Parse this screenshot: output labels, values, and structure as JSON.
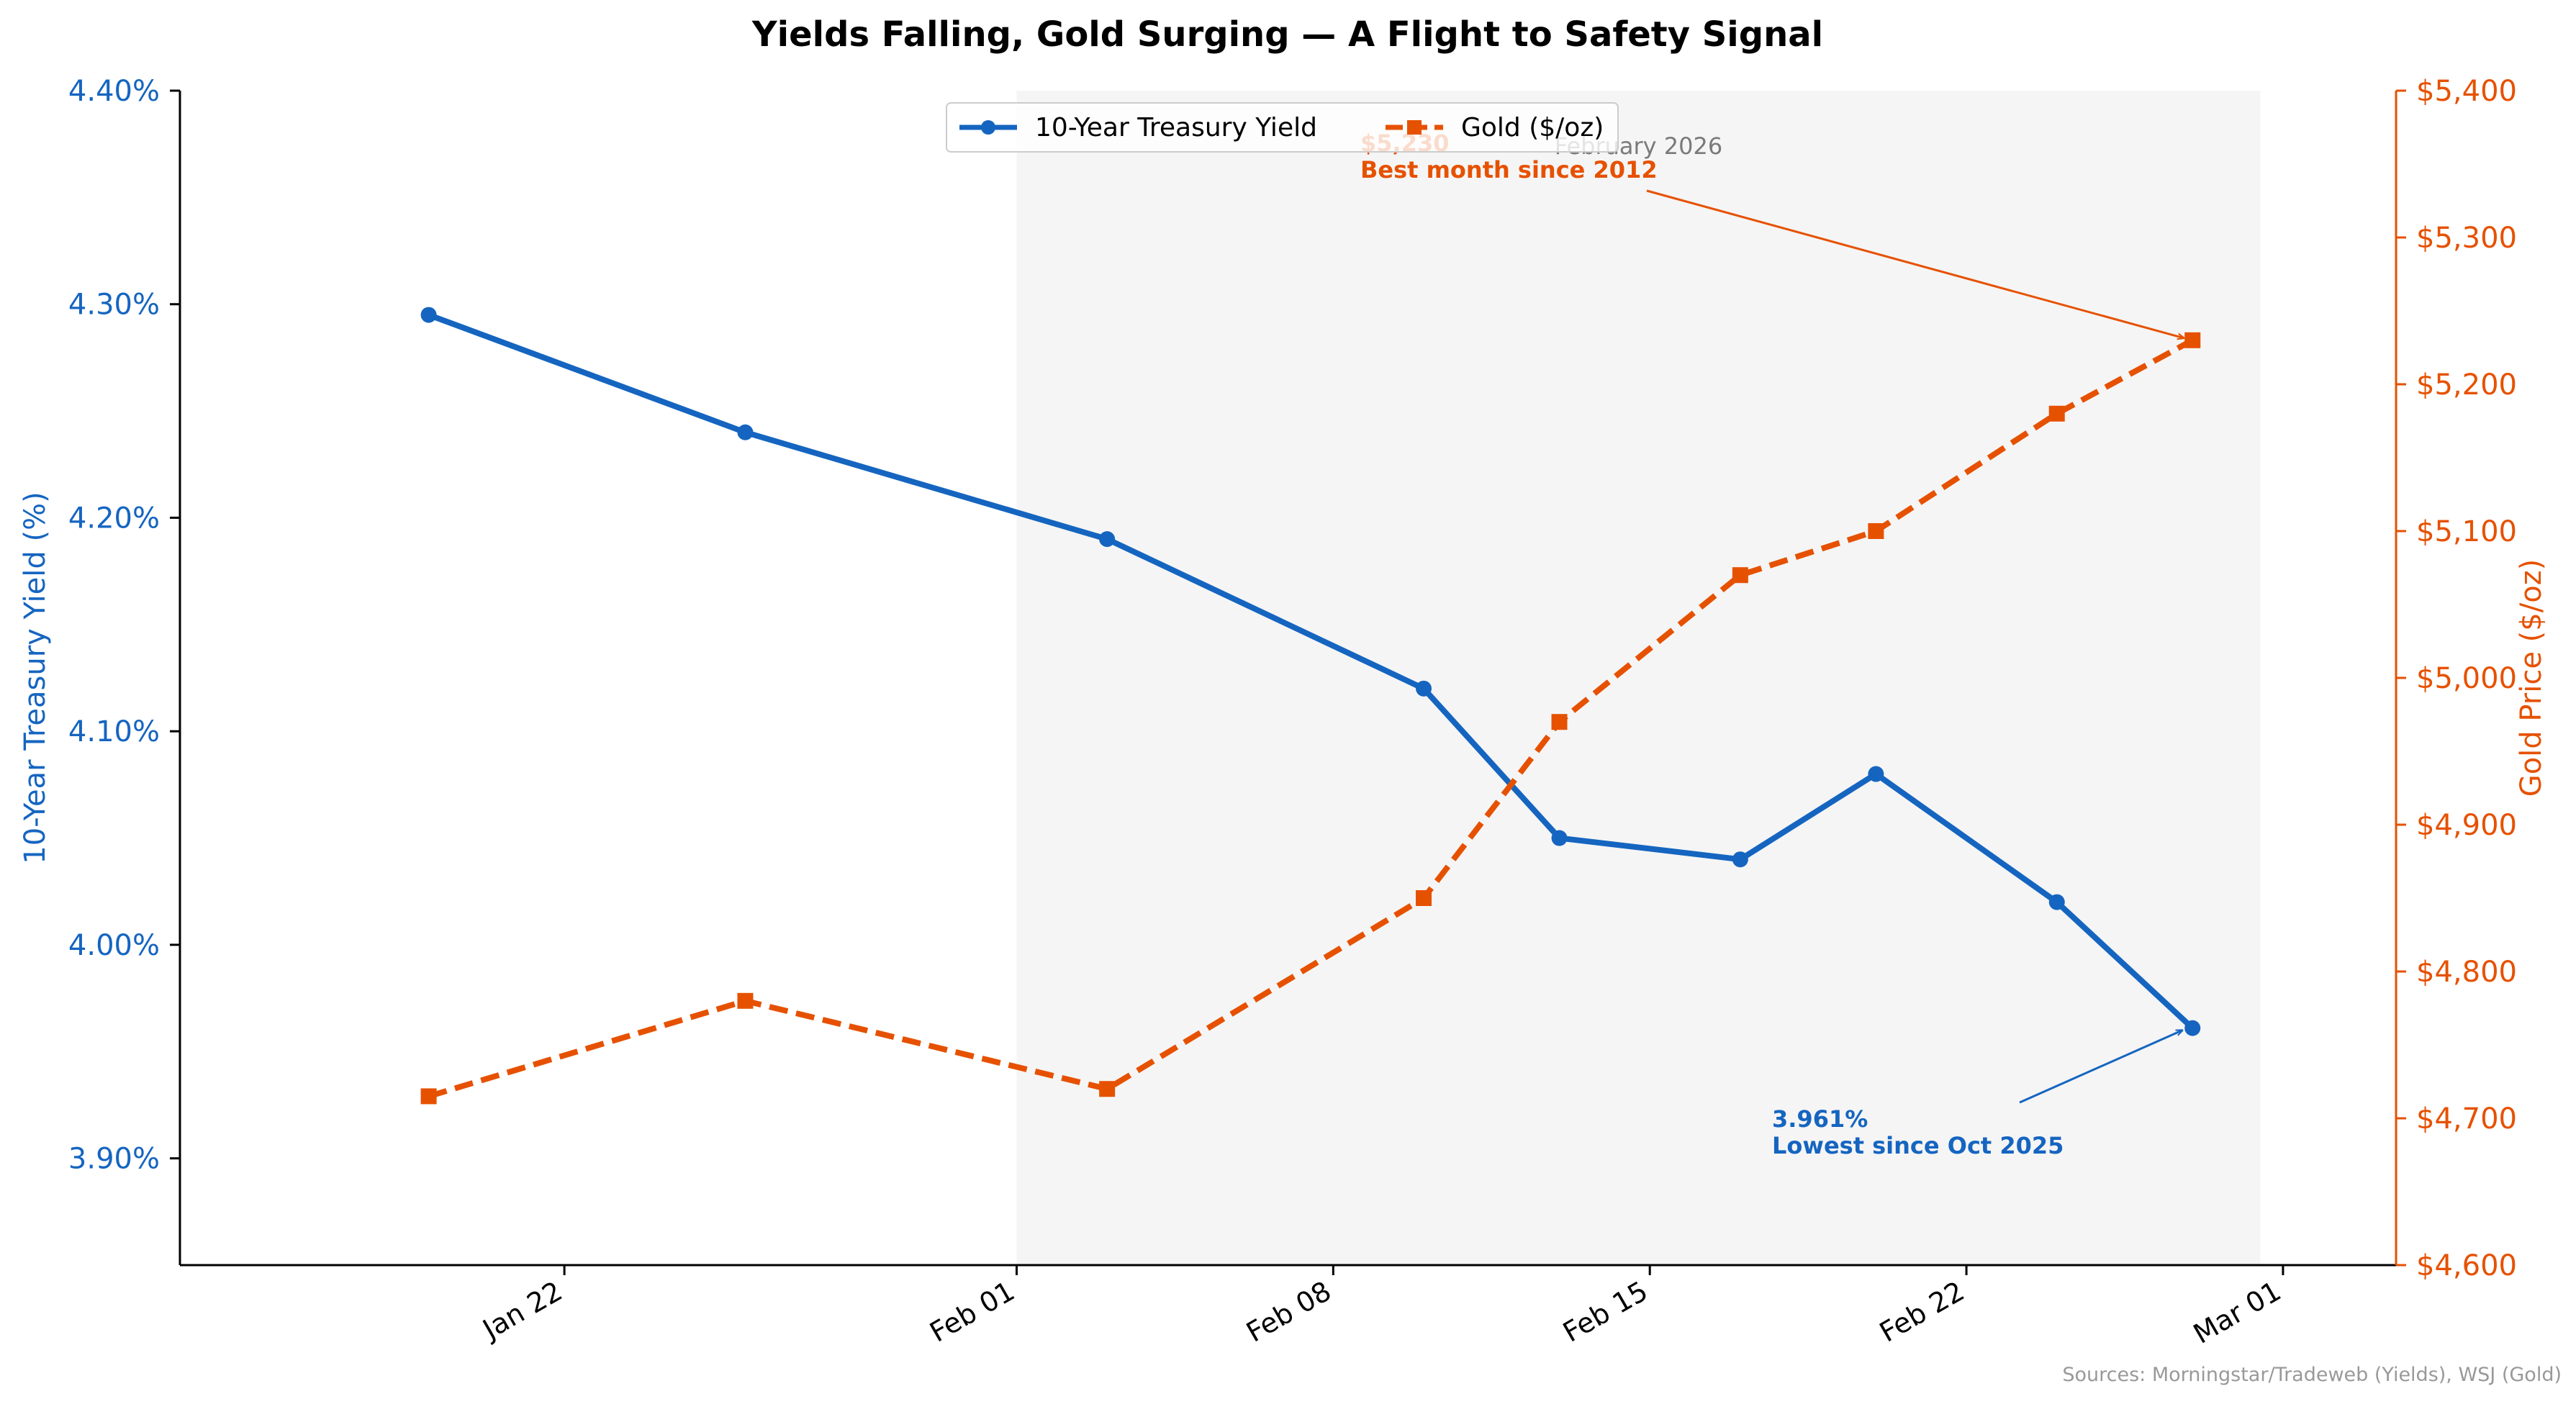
{
  "chart_data": {
    "type": "line",
    "title": "Yields Falling, Gold Surging — A Flight to Safety Signal",
    "x": [
      "2026-01-19",
      "2026-01-26",
      "2026-02-03",
      "2026-02-10",
      "2026-02-13",
      "2026-02-17",
      "2026-02-20",
      "2026-02-24",
      "2026-02-27"
    ],
    "x_ticks": [
      "Jan 22",
      "Feb 01",
      "Feb 08",
      "Feb 15",
      "Feb 22",
      "Mar 01"
    ],
    "series": [
      {
        "name": "10-Year Treasury Yield",
        "axis": "left",
        "color": "#1565c0",
        "style": "solid",
        "marker": "circle",
        "values": [
          4.295,
          4.24,
          4.19,
          4.12,
          4.05,
          4.04,
          4.08,
          4.02,
          3.961
        ]
      },
      {
        "name": "Gold ($/oz)",
        "axis": "right",
        "color": "#e65100",
        "style": "dashed",
        "marker": "square",
        "values": [
          4715,
          4780,
          4720,
          4850,
          4970,
          5070,
          5100,
          5180,
          5230
        ]
      }
    ],
    "y_left": {
      "label": "10-Year Treasury Yield (%)",
      "ylim": [
        3.85,
        4.4
      ],
      "ticks": [
        3.9,
        4.0,
        4.1,
        4.2,
        4.3,
        4.4
      ],
      "tick_labels": [
        "3.90%",
        "4.00%",
        "4.10%",
        "4.20%",
        "4.30%",
        "4.40%"
      ]
    },
    "y_right": {
      "label": "Gold Price ($/oz)",
      "ylim": [
        4600,
        5400
      ],
      "ticks": [
        4600,
        4700,
        4800,
        4900,
        5000,
        5100,
        5200,
        5300,
        5400
      ],
      "tick_labels": [
        "$4,600",
        "$4,700",
        "$4,800",
        "$4,900",
        "$5,000",
        "$5,100",
        "$5,200",
        "$5,300",
        "$5,400"
      ]
    },
    "shaded_region": {
      "label": "February 2026",
      "start": "2026-02-01",
      "end": "2026-02-28"
    },
    "legend": {
      "placement": "top-center",
      "entries": [
        "10-Year Treasury Yield",
        "Gold ($/oz)"
      ]
    },
    "annotations": [
      {
        "series": "Gold ($/oz)",
        "point_index": 8,
        "lines": [
          "$5,230",
          "Best month since 2012"
        ],
        "color": "#e65100"
      },
      {
        "series": "10-Year Treasury Yield",
        "point_index": 8,
        "lines": [
          "3.961%",
          "Lowest since Oct 2025"
        ],
        "color": "#1565c0"
      }
    ],
    "source": "Sources: Morningstar/Tradeweb (Yields), WSJ (Gold)",
    "grid": false
  }
}
